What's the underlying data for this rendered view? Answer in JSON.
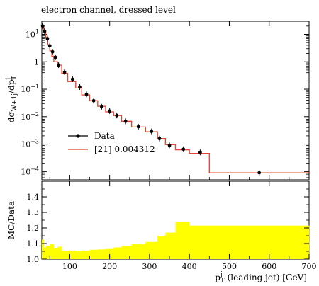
{
  "chart_data": [
    {
      "type": "line",
      "title": "electron channel, dressed level",
      "xlabel": "p_T^j (leading jet) [GeV]",
      "ylabel": "dσ_{W+1j}/dp_T^j",
      "yscale": "log",
      "xlim": [
        30,
        700
      ],
      "ylim": [
        5e-05,
        30
      ],
      "y_tick_labels": [
        "10^1",
        "1",
        "10^-1",
        "10^-2",
        "10^-3",
        "10^-4"
      ],
      "legend_position": "center-left",
      "series": [
        {
          "name": "Data",
          "color": "#000000",
          "x": [
            32,
            37,
            44,
            50,
            57,
            64,
            72,
            87,
            107,
            125,
            142,
            160,
            180,
            200,
            218,
            240,
            272,
            305,
            325,
            350,
            385,
            427,
            575
          ],
          "y": [
            20,
            13,
            7,
            3.8,
            2.3,
            1.45,
            0.75,
            0.42,
            0.23,
            0.12,
            0.065,
            0.038,
            0.023,
            0.016,
            0.011,
            0.0068,
            0.0043,
            0.0029,
            0.0016,
            0.0009,
            0.00065,
            0.0005,
            9e-05
          ]
        },
        {
          "name": "[21] 0.004312",
          "color": "#e8412e",
          "bin_edges": [
            30,
            35,
            40,
            45,
            50,
            55,
            60,
            70,
            80,
            95,
            115,
            130,
            150,
            170,
            190,
            210,
            230,
            255,
            290,
            320,
            340,
            365,
            400,
            450,
            700
          ],
          "values": [
            20,
            13,
            7.5,
            4.2,
            2.5,
            1.6,
            1.0,
            0.75,
            0.38,
            0.19,
            0.11,
            0.062,
            0.038,
            0.024,
            0.015,
            0.011,
            0.0068,
            0.0042,
            0.0028,
            0.0016,
            0.00095,
            0.00062,
            0.00046,
            9e-05
          ]
        }
      ]
    },
    {
      "type": "area",
      "ylabel": "MC/Data",
      "xlim": [
        30,
        700
      ],
      "ylim": [
        1.0,
        1.5
      ],
      "y_tick_labels": [
        "1.0",
        "1.1",
        "1.2",
        "1.3",
        "1.4"
      ],
      "x_tick_labels": [
        "100",
        "200",
        "300",
        "400",
        "500",
        "600",
        "700"
      ],
      "band_color": "#ffff00",
      "bin_edges": [
        30,
        35,
        40,
        50,
        60,
        70,
        80,
        95,
        115,
        130,
        150,
        170,
        190,
        210,
        230,
        255,
        290,
        320,
        340,
        365,
        400,
        450,
        700
      ],
      "upper": [
        1.125,
        1.075,
        1.085,
        1.095,
        1.07,
        1.08,
        1.055,
        1.055,
        1.05,
        1.055,
        1.06,
        1.062,
        1.065,
        1.075,
        1.085,
        1.095,
        1.11,
        1.15,
        1.17,
        1.24,
        1.215,
        1.215
      ],
      "lower": [
        1.0,
        1.0,
        1.0,
        1.0,
        1.0,
        1.0,
        1.0,
        1.0,
        1.0,
        1.0,
        1.0,
        1.0,
        1.0,
        1.0,
        1.0,
        1.0,
        1.0,
        1.0,
        1.0,
        1.0,
        1.0,
        1.0
      ]
    }
  ]
}
